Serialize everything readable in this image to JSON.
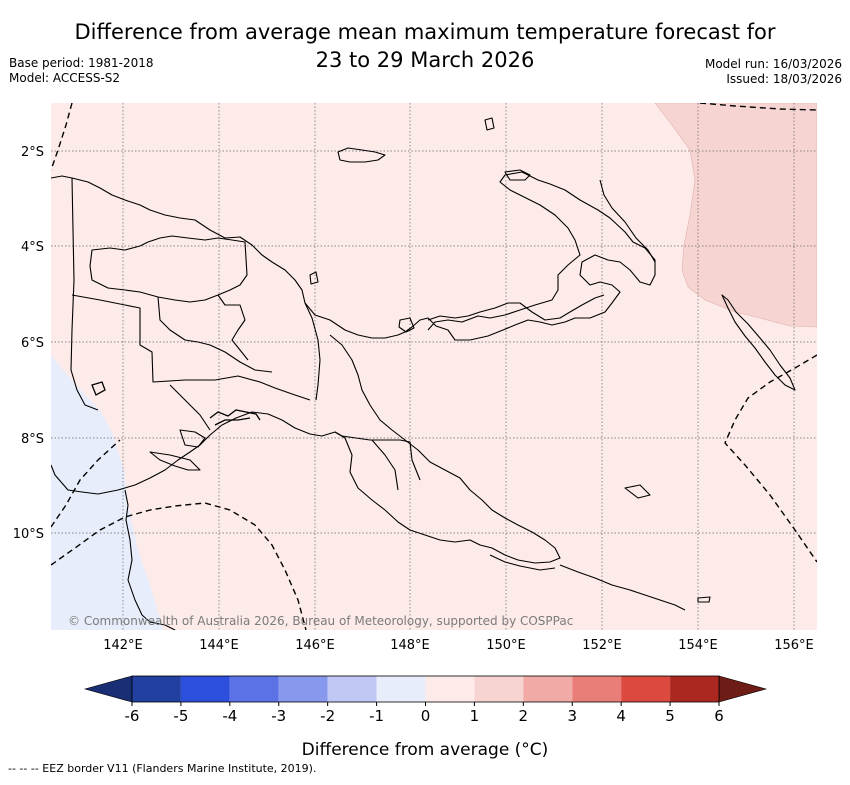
{
  "title": {
    "line1": "Difference from average mean maximum temperature forecast for",
    "line2": "23 to 29 March 2026"
  },
  "meta_left": {
    "base_period": "Base period: 1981-2018",
    "model": "Model: ACCESS-S2"
  },
  "meta_right": {
    "model_run": "Model run: 16/03/2026",
    "issued": "Issued: 18/03/2026"
  },
  "map": {
    "lat_labels": [
      "2°S",
      "4°S",
      "6°S",
      "8°S",
      "10°S"
    ],
    "lon_labels": [
      "142°E",
      "144°E",
      "146°E",
      "148°E",
      "150°E",
      "152°E",
      "154°E",
      "156°E"
    ],
    "copyright": "© Commonwealth of Australia 2026, Bureau of Meteorology, supported by COSPPac",
    "colors": {
      "base_fill": "#fcebe9",
      "cool_fill": "#e8edfb",
      "warm_fill": "#f5d4d2",
      "coastline": "#000000",
      "grid": "#666666"
    }
  },
  "colorbar": {
    "ticks": [
      "-6",
      "-5",
      "-4",
      "-3",
      "-2",
      "-1",
      "0",
      "1",
      "2",
      "3",
      "4",
      "5",
      "6"
    ],
    "colors": [
      "#22409f",
      "#2d4fde",
      "#5a72e6",
      "#8898ec",
      "#c1c8f5",
      "#e8edfb",
      "#fcebe9",
      "#f7d4d2",
      "#f1aaa5",
      "#e87e77",
      "#dc4a3f",
      "#ab2820"
    ],
    "low_extend_color": "#192e74",
    "high_extend_color": "#6e1c16",
    "label": "Difference from average (°C)"
  },
  "footer": "--  --  -- EEZ border V11 (Flanders Marine Institute, 2019)."
}
